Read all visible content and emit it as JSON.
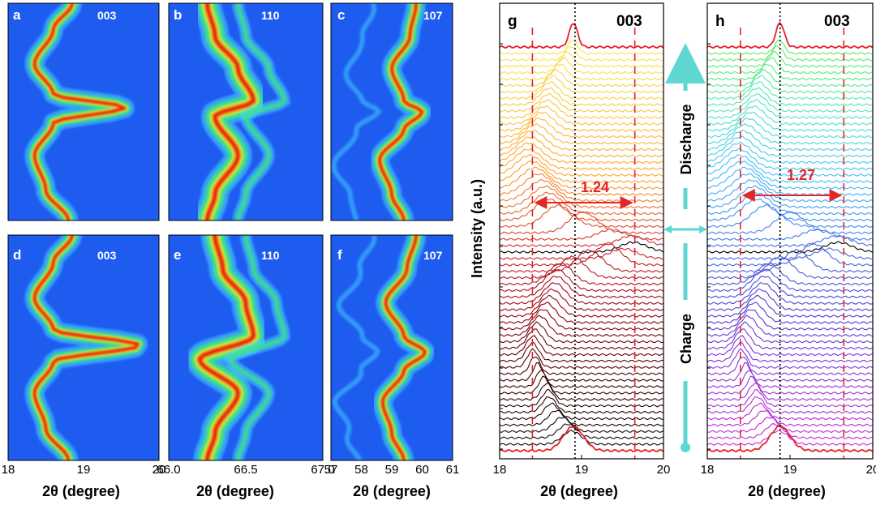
{
  "chart_data": [
    {
      "id": "a",
      "type": "heatmap",
      "panel_label": "a",
      "reflection": "003",
      "xlim": [
        18,
        20
      ],
      "xticks": [
        "18",
        "19",
        "20"
      ],
      "xlabel": "2θ (degree)",
      "peak_path": [
        [
          18.85,
          0.0
        ],
        [
          18.6,
          0.12
        ],
        [
          18.35,
          0.28
        ],
        [
          18.6,
          0.42
        ],
        [
          19.55,
          0.48
        ],
        [
          18.6,
          0.55
        ],
        [
          18.35,
          0.7
        ],
        [
          18.5,
          0.86
        ],
        [
          18.8,
          1.0
        ]
      ]
    },
    {
      "id": "b",
      "type": "heatmap",
      "panel_label": "b",
      "reflection": "110",
      "xlim": [
        66.0,
        67.0
      ],
      "xticks": [
        "66.0",
        "66.5",
        "67.0"
      ],
      "xlabel": "2θ (degree)",
      "peak_path": [
        [
          66.25,
          0.0
        ],
        [
          66.3,
          0.15
        ],
        [
          66.45,
          0.3
        ],
        [
          66.55,
          0.45
        ],
        [
          66.3,
          0.52
        ],
        [
          66.45,
          0.7
        ],
        [
          66.3,
          0.88
        ],
        [
          66.25,
          1.0
        ]
      ]
    },
    {
      "id": "c",
      "type": "heatmap",
      "panel_label": "c",
      "reflection": "107",
      "xlim": [
        57,
        61
      ],
      "xticks": [
        "57",
        "58",
        "59",
        "60",
        "61"
      ],
      "xlabel": "2θ (degree)",
      "peak_path": [
        [
          59.8,
          0.0
        ],
        [
          59.6,
          0.15
        ],
        [
          59.0,
          0.3
        ],
        [
          59.4,
          0.45
        ],
        [
          60.0,
          0.5
        ],
        [
          59.4,
          0.58
        ],
        [
          58.6,
          0.72
        ],
        [
          59.0,
          0.88
        ],
        [
          59.4,
          1.0
        ]
      ]
    },
    {
      "id": "d",
      "type": "heatmap",
      "panel_label": "d",
      "reflection": "003",
      "xlim": [
        18,
        20
      ],
      "xticks": [
        "18",
        "19",
        "20"
      ],
      "xlabel": "2θ (degree)",
      "peak_path": [
        [
          18.85,
          0.0
        ],
        [
          18.6,
          0.12
        ],
        [
          18.35,
          0.28
        ],
        [
          18.6,
          0.42
        ],
        [
          19.75,
          0.49
        ],
        [
          18.6,
          0.56
        ],
        [
          18.35,
          0.7
        ],
        [
          18.5,
          0.86
        ],
        [
          18.8,
          1.0
        ]
      ]
    },
    {
      "id": "e",
      "type": "heatmap",
      "panel_label": "e",
      "reflection": "110",
      "xlim": [
        66.0,
        67.0
      ],
      "xticks": [
        "66.0",
        "66.5",
        "67.0"
      ],
      "xlabel": "2θ (degree)",
      "peak_path": [
        [
          66.3,
          0.0
        ],
        [
          66.35,
          0.15
        ],
        [
          66.5,
          0.3
        ],
        [
          66.55,
          0.45
        ],
        [
          66.2,
          0.55
        ],
        [
          66.45,
          0.7
        ],
        [
          66.3,
          0.88
        ],
        [
          66.25,
          1.0
        ]
      ]
    },
    {
      "id": "f",
      "type": "heatmap",
      "panel_label": "f",
      "reflection": "107",
      "xlim": [
        57,
        61
      ],
      "xticks": [
        "57",
        "58",
        "59",
        "60",
        "61"
      ],
      "xlabel": "2θ (degree)",
      "peak_path": [
        [
          59.8,
          0.0
        ],
        [
          59.5,
          0.15
        ],
        [
          58.8,
          0.3
        ],
        [
          59.4,
          0.45
        ],
        [
          60.1,
          0.52
        ],
        [
          59.4,
          0.6
        ],
        [
          58.7,
          0.74
        ],
        [
          59.0,
          0.88
        ],
        [
          59.4,
          1.0
        ]
      ]
    },
    {
      "id": "g",
      "type": "line",
      "panel_label": "g",
      "reflection": "003",
      "xlim": [
        18,
        20
      ],
      "xticks": [
        "18",
        "19",
        "20"
      ],
      "xlabel": "2θ (degree)",
      "ylabel": "Intensity (a.u.)",
      "dashed_lines_x": [
        18.4,
        19.65
      ],
      "dotted_line_x": 18.92,
      "annotation": "1.24",
      "n_curves": 64,
      "colormap": "black-red-orange-yellow",
      "peak_path": [
        [
          18.9,
          0.0
        ],
        [
          18.6,
          0.15
        ],
        [
          18.35,
          0.3
        ],
        [
          18.6,
          0.43
        ],
        [
          19.65,
          0.5
        ],
        [
          18.7,
          0.6
        ],
        [
          18.4,
          0.78
        ],
        [
          18.6,
          0.9
        ],
        [
          18.9,
          1.0
        ]
      ]
    },
    {
      "id": "h",
      "type": "line",
      "panel_label": "h",
      "reflection": "003",
      "xlim": [
        18,
        20
      ],
      "xticks": [
        "18",
        "19",
        "20"
      ],
      "xlabel": "2θ (degree)",
      "dashed_lines_x": [
        18.4,
        19.65
      ],
      "dotted_line_x": 18.88,
      "annotation": "1.27",
      "n_curves": 64,
      "colormap": "purple-blue-cyan-green",
      "peak_path": [
        [
          18.88,
          0.0
        ],
        [
          18.6,
          0.15
        ],
        [
          18.38,
          0.3
        ],
        [
          18.6,
          0.43
        ],
        [
          19.6,
          0.5
        ],
        [
          18.7,
          0.6
        ],
        [
          18.4,
          0.78
        ],
        [
          18.6,
          0.9
        ],
        [
          18.88,
          1.0
        ]
      ]
    }
  ],
  "side_labels": {
    "top": "Discharge",
    "bottom": "Charge"
  },
  "colors": {
    "heat_bg": "#1e5cf0",
    "arrow": "#5ed6d2",
    "dash": "#e32626"
  }
}
